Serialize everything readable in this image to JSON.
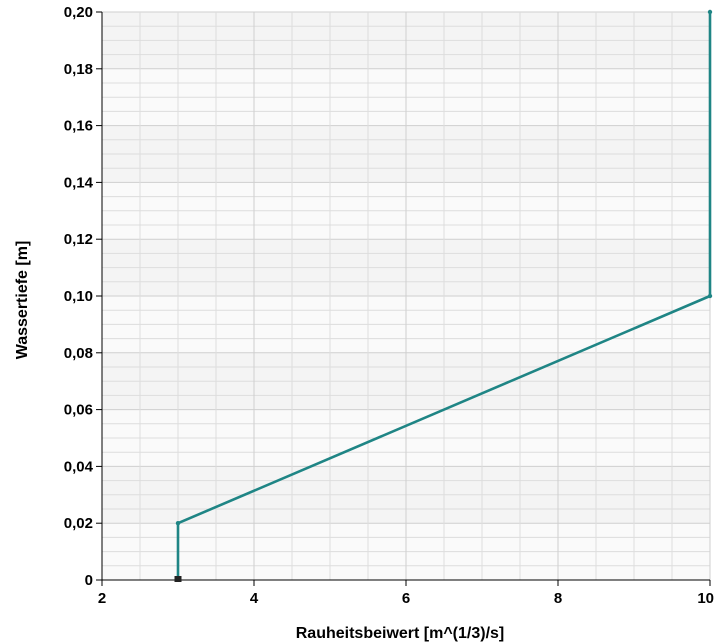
{
  "chart_data": {
    "type": "line",
    "title": "",
    "xlabel": "Rauheitsbeiwert [m^(1/3)/s]",
    "ylabel": "Wassertiefe [m]",
    "xlim": [
      2,
      10
    ],
    "ylim": [
      0,
      0.2
    ],
    "x_ticks": [
      "2",
      "4",
      "6",
      "8",
      "10"
    ],
    "y_ticks": [
      "0",
      "0,02",
      "0,04",
      "0,06",
      "0,08",
      "0,10",
      "0,12",
      "0,14",
      "0,16",
      "0,18",
      "0,20"
    ],
    "grid": true,
    "series": [
      {
        "color": "#1f8585",
        "points": [
          {
            "x": 3,
            "y": 0
          },
          {
            "x": 3,
            "y": 0.02
          },
          {
            "x": 10,
            "y": 0.1
          },
          {
            "x": 10,
            "y": 0.2
          }
        ]
      }
    ],
    "colors": {
      "plot_background": "#f4f4f4",
      "band_light": "#fafafa",
      "grid_minor": "#dddddd",
      "grid_major": "#cfcfcf",
      "axis": "#000000"
    }
  }
}
